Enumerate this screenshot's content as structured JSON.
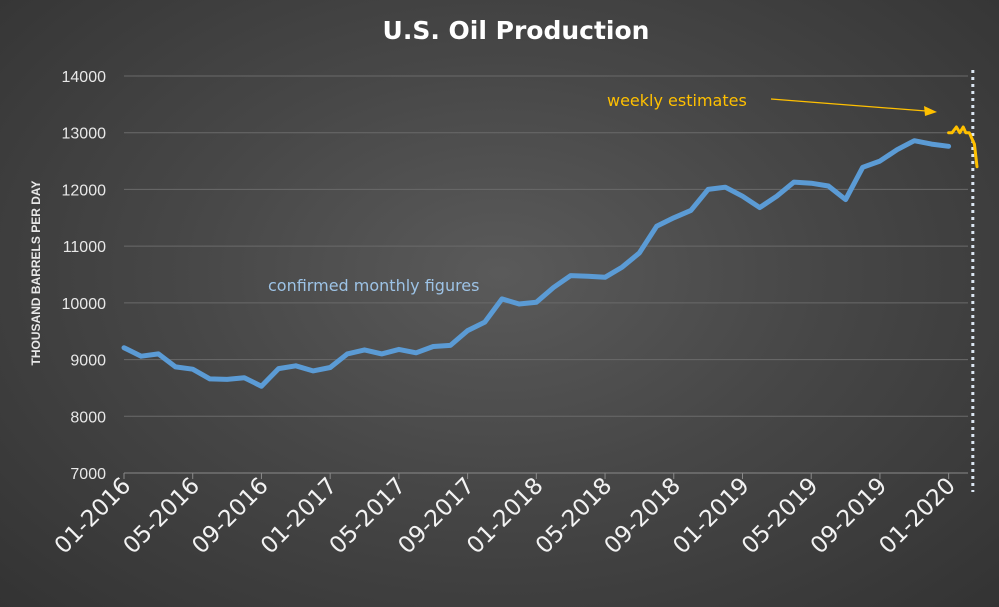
{
  "chart_data": {
    "type": "line",
    "title": "U.S. Oil Production",
    "ylabel": "THOUSAND BARRELS PER DAY",
    "xlabel": "",
    "ylim": [
      7000,
      14000
    ],
    "yticks": [
      7000,
      8000,
      9000,
      10000,
      11000,
      12000,
      13000,
      14000
    ],
    "x_tick_labels": [
      "01-2016",
      "05-2016",
      "09-2016",
      "01-2017",
      "05-2017",
      "09-2017",
      "01-2018",
      "05-2018",
      "09-2018",
      "01-2019",
      "05-2019",
      "09-2019",
      "01-2020"
    ],
    "grid": "horizontal",
    "colors": {
      "monthly": "#5b9bd5",
      "weekly": "#ffc000",
      "divider": "#dce6f2"
    },
    "series": [
      {
        "key": "monthly",
        "x": [
          "01-2016",
          "02-2016",
          "03-2016",
          "04-2016",
          "05-2016",
          "06-2016",
          "07-2016",
          "08-2016",
          "09-2016",
          "10-2016",
          "11-2016",
          "12-2016",
          "01-2017",
          "02-2017",
          "03-2017",
          "04-2017",
          "05-2017",
          "06-2017",
          "07-2017",
          "08-2017",
          "09-2017",
          "10-2017",
          "11-2017",
          "12-2017",
          "01-2018",
          "02-2018",
          "03-2018",
          "04-2018",
          "05-2018",
          "06-2018",
          "07-2018",
          "08-2018",
          "09-2018",
          "10-2018",
          "11-2018",
          "12-2018",
          "01-2019",
          "02-2019",
          "03-2019",
          "04-2019",
          "05-2019",
          "06-2019",
          "07-2019",
          "08-2019",
          "09-2019",
          "10-2019",
          "11-2019",
          "12-2019",
          "01-2020"
        ],
        "values": [
          9210,
          9060,
          9100,
          8870,
          8830,
          8660,
          8650,
          8680,
          8530,
          8840,
          8890,
          8800,
          8860,
          9100,
          9170,
          9100,
          9180,
          9120,
          9230,
          9250,
          9510,
          9660,
          10070,
          9980,
          10010,
          10270,
          10480,
          10470,
          10450,
          10630,
          10880,
          11350,
          11500,
          11630,
          12000,
          12040,
          11880,
          11680,
          11880,
          12130,
          12110,
          12060,
          11820,
          12390,
          12500,
          12700,
          12860,
          12800,
          12760
        ]
      },
      {
        "key": "weekly",
        "x": [
          "01-2020",
          "01-2020",
          "01-2020",
          "01-2020",
          "01-2020",
          "02-2020",
          "02-2020",
          "02-2020",
          "02-2020",
          "03-2020"
        ],
        "x_month_position": [
          48.0,
          48.2,
          48.45,
          48.65,
          48.85,
          49.0,
          49.2,
          49.35,
          49.5,
          49.65
        ],
        "values": [
          13000,
          13000,
          13100,
          13000,
          13100,
          13000,
          13000,
          12900,
          12800,
          12400
        ]
      }
    ],
    "divider_x": "02-2020",
    "annotations": {
      "weekly": "weekly estimates",
      "monthly": "confirmed monthly figures"
    }
  }
}
